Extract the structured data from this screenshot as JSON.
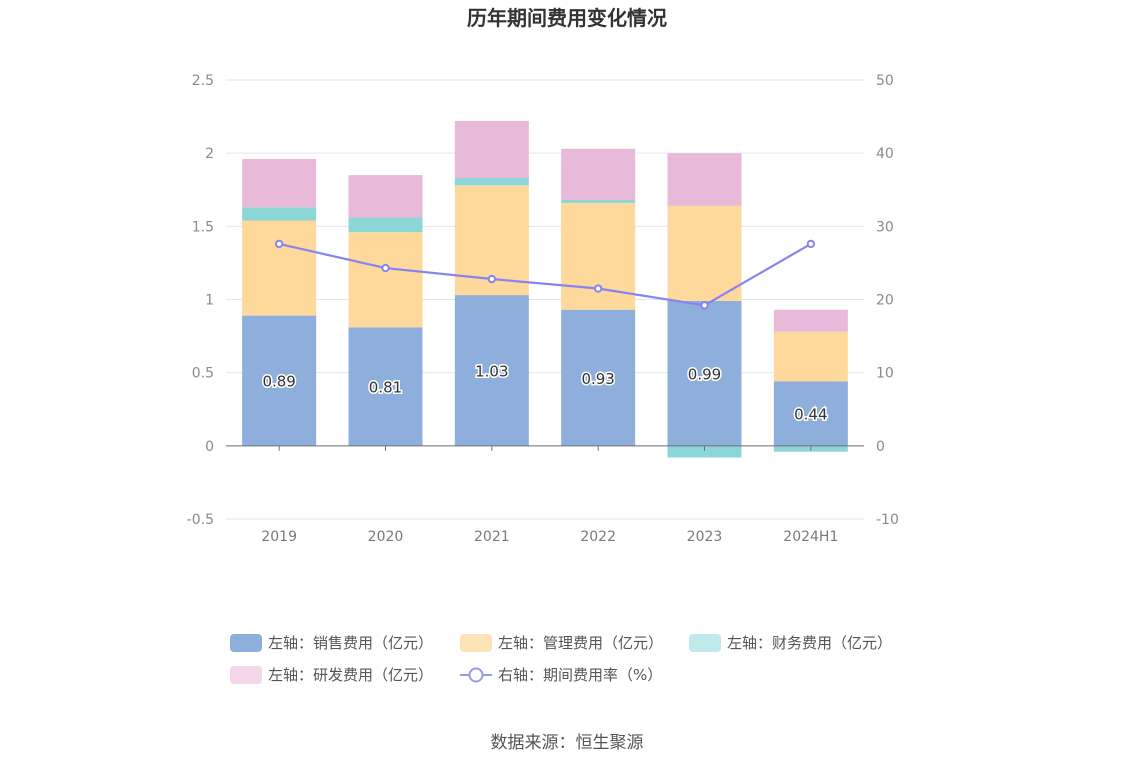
{
  "chart_data": {
    "type": "bar",
    "title": "历年期间费用变化情况",
    "categories": [
      "2019",
      "2020",
      "2021",
      "2022",
      "2023",
      "2024H1"
    ],
    "series": [
      {
        "name": "左轴：销售费用（亿元）",
        "axis": "left",
        "kind": "bar",
        "color": "#8eaedb",
        "values": [
          0.89,
          0.81,
          1.03,
          0.93,
          0.99,
          0.44
        ],
        "labels": [
          "0.89",
          "0.81",
          "1.03",
          "0.93",
          "0.99",
          "0.44"
        ]
      },
      {
        "name": "左轴：管理费用（亿元）",
        "axis": "left",
        "kind": "bar",
        "color": "#fed99b",
        "values": [
          0.65,
          0.65,
          0.75,
          0.73,
          0.65,
          0.34
        ]
      },
      {
        "name": "左轴：财务费用（亿元）",
        "axis": "left",
        "kind": "bar",
        "color": "#8dd6d8",
        "values": [
          0.09,
          0.1,
          0.05,
          0.02,
          -0.08,
          -0.04
        ]
      },
      {
        "name": "左轴：研发费用（亿元）",
        "axis": "left",
        "kind": "bar",
        "color": "#e8b9d9",
        "values": [
          0.33,
          0.29,
          0.39,
          0.35,
          0.36,
          0.15
        ]
      },
      {
        "name": "右轴：期间费用率（%）",
        "axis": "right",
        "kind": "line",
        "color": "#8585f0",
        "values": [
          27.6,
          24.3,
          22.8,
          21.5,
          19.2,
          27.6
        ]
      }
    ],
    "left_axis": {
      "min": -0.5,
      "max": 2.5,
      "ticks": [
        "-0.5",
        "0",
        "0.5",
        "1",
        "1.5",
        "2",
        "2.5"
      ],
      "tick_values": [
        -0.5,
        0,
        0.5,
        1,
        1.5,
        2,
        2.5
      ]
    },
    "right_axis": {
      "min": -10,
      "max": 50,
      "ticks": [
        "-10",
        "0",
        "10",
        "20",
        "30",
        "40",
        "50"
      ],
      "tick_values": [
        -10,
        0,
        10,
        20,
        30,
        40,
        50
      ]
    },
    "legend_position": "bottom",
    "grid": true
  },
  "legend_colors": [
    "#8eaedb",
    "#fde3b8",
    "#bfe9ea",
    "#f3d6e9",
    "#9999ee"
  ],
  "source": "数据来源：恒生聚源"
}
